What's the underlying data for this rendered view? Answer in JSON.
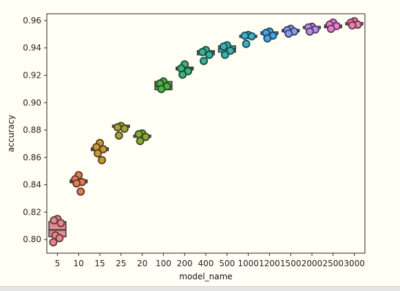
{
  "chart_data": {
    "type": "box+swarm",
    "xlabel": "model_name",
    "ylabel": "accuracy",
    "ylim": [
      0.79,
      0.965
    ],
    "yticks": [
      0.8,
      0.82,
      0.84,
      0.86,
      0.88,
      0.9,
      0.92,
      0.94,
      0.96
    ],
    "ytick_labels": [
      "0.80",
      "0.82",
      "0.84",
      "0.86",
      "0.88",
      "0.90",
      "0.92",
      "0.94",
      "0.96"
    ],
    "grid": false,
    "categories": [
      "5",
      "10",
      "15",
      "25",
      "20",
      "100",
      "200",
      "400",
      "500",
      "1000",
      "1200",
      "1500",
      "2000",
      "2500",
      "3000"
    ],
    "series": [
      {
        "category": "5",
        "color": "#e8888f",
        "box": [
          0.802,
          0.807,
          0.813
        ],
        "points": [
          0.815,
          0.814,
          0.812,
          0.803,
          0.801,
          0.798
        ]
      },
      {
        "category": "10",
        "color": "#e07f5a",
        "box": [
          0.8415,
          0.8425,
          0.8435
        ],
        "points": [
          0.847,
          0.844,
          0.842,
          0.841,
          0.835
        ]
      },
      {
        "category": "15",
        "color": "#c99a3a",
        "box": [
          0.865,
          0.866,
          0.867
        ],
        "points": [
          0.8705,
          0.8675,
          0.866,
          0.863,
          0.858
        ]
      },
      {
        "category": "25",
        "color": "#a8a23c",
        "box": [
          0.8815,
          0.8822,
          0.8828
        ],
        "points": [
          0.883,
          0.882,
          0.881,
          0.876
        ]
      },
      {
        "category": "20",
        "color": "#88ab3a",
        "box": [
          0.8745,
          0.875,
          0.8755
        ],
        "points": [
          0.8775,
          0.877,
          0.875,
          0.872
        ]
      },
      {
        "category": "100",
        "color": "#4fb04a",
        "box": [
          0.9095,
          0.912,
          0.9155
        ],
        "points": [
          0.9155,
          0.914,
          0.912,
          0.91
        ]
      },
      {
        "category": "200",
        "color": "#3eb37c",
        "box": [
          0.924,
          0.925,
          0.926
        ],
        "points": [
          0.928,
          0.925,
          0.923,
          0.9205
        ]
      },
      {
        "category": "400",
        "color": "#38b39a",
        "box": [
          0.935,
          0.937,
          0.938
        ],
        "points": [
          0.9385,
          0.937,
          0.935,
          0.9305
        ]
      },
      {
        "category": "500",
        "color": "#3ab4b1",
        "box": [
          0.937,
          0.9395,
          0.9415
        ],
        "points": [
          0.942,
          0.941,
          0.938,
          0.935
        ]
      },
      {
        "category": "1000",
        "color": "#3db0c8",
        "box": [
          0.9475,
          0.948,
          0.9485
        ],
        "points": [
          0.9495,
          0.949,
          0.9485,
          0.943
        ]
      },
      {
        "category": "1200",
        "color": "#47a5e0",
        "box": [
          0.9495,
          0.95,
          0.951
        ],
        "points": [
          0.952,
          0.951,
          0.949,
          0.947
        ]
      },
      {
        "category": "1500",
        "color": "#8a9bf0",
        "box": [
          0.9518,
          0.9525,
          0.9535
        ],
        "points": [
          0.954,
          0.953,
          0.952,
          0.9505
        ]
      },
      {
        "category": "2000",
        "color": "#b98cea",
        "box": [
          0.954,
          0.9545,
          0.955
        ],
        "points": [
          0.9555,
          0.955,
          0.9535,
          0.952
        ]
      },
      {
        "category": "2500",
        "color": "#e77fd5",
        "box": [
          0.9548,
          0.9558,
          0.9568
        ],
        "points": [
          0.9585,
          0.957,
          0.956,
          0.954
        ]
      },
      {
        "category": "3000",
        "color": "#ec82b0",
        "box": [
          0.9565,
          0.957,
          0.9578
        ],
        "points": [
          0.9595,
          0.9585,
          0.957,
          0.9565
        ]
      }
    ]
  }
}
